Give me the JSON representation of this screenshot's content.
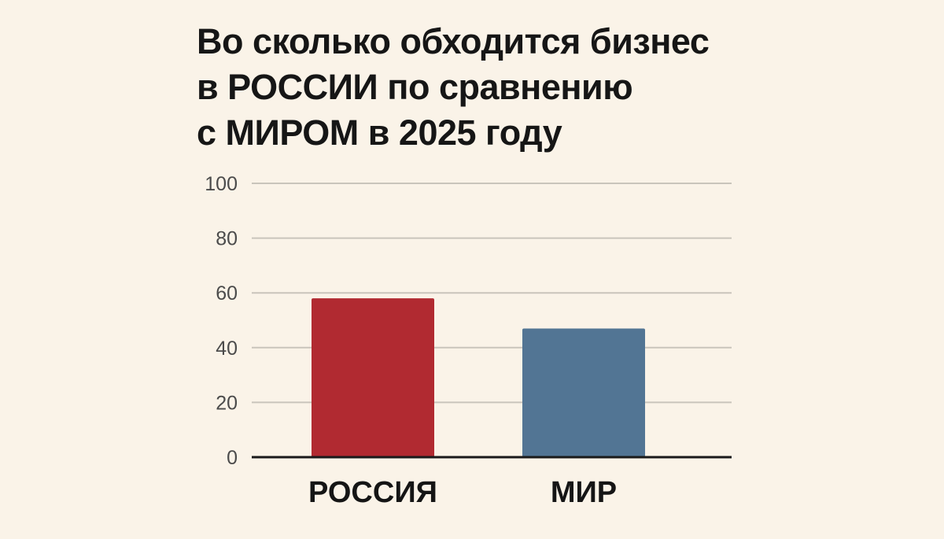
{
  "chart_data": {
    "type": "bar",
    "title_lines": [
      "Во сколько обходится бизнес",
      "в РОССИИ по сравнению",
      "с МИРОМ в 2025 году"
    ],
    "categories": [
      "РОССИЯ",
      "МИР"
    ],
    "values": [
      58,
      47
    ],
    "colors": [
      "#b12a31",
      "#527594"
    ],
    "ylim": [
      0,
      100
    ],
    "yticks": [
      0,
      20,
      40,
      60,
      80,
      100
    ],
    "grid": true,
    "xlabel": "",
    "ylabel": ""
  }
}
